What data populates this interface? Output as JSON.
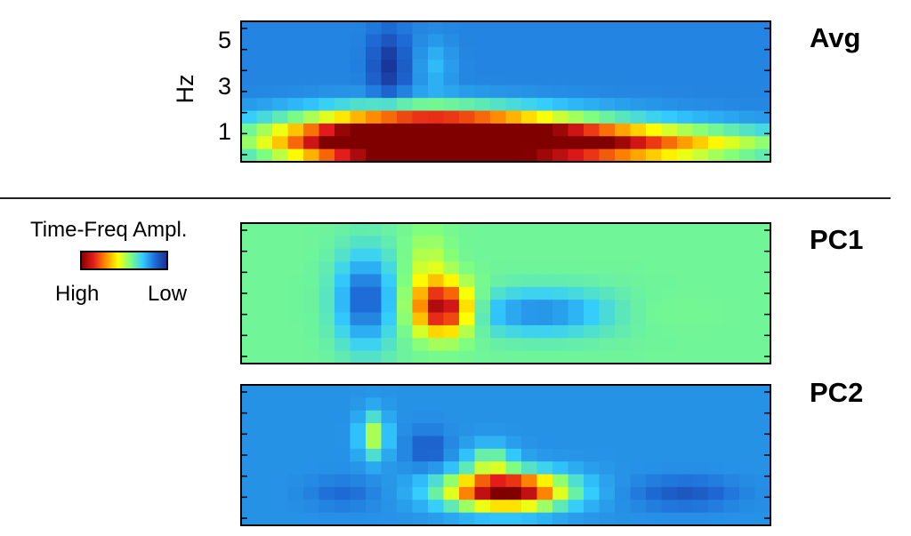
{
  "chart_data": [
    {
      "type": "heatmap",
      "label": "Avg",
      "ylabel": "Hz",
      "yticks": [
        "1",
        "3",
        "5"
      ],
      "rows": 11,
      "cols": 34,
      "blobs": [
        {
          "c": 13,
          "r": 8.8,
          "sc": 7.5,
          "sr": 1.3,
          "a": 1.0
        },
        {
          "c": 23,
          "r": 9.2,
          "sc": 9,
          "sr": 1.0,
          "a": 0.45
        },
        {
          "c": 8,
          "r": 9.3,
          "sc": 4,
          "sr": 1.0,
          "a": 0.28
        },
        {
          "c": 11,
          "r": 7.2,
          "sc": 5,
          "sr": 1.0,
          "a": 0.25
        },
        {
          "c": 9,
          "r": 3,
          "sc": 0.8,
          "sr": 1.8,
          "a": -0.16
        },
        {
          "c": 12,
          "r": 3,
          "sc": 0.8,
          "sr": 1.4,
          "a": 0.08
        }
      ],
      "base": 0.18
    },
    {
      "type": "heatmap",
      "label": "PC1",
      "rows": 11,
      "cols": 34,
      "blobs": [
        {
          "c": 12.5,
          "r": 6.2,
          "sc": 1.3,
          "sr": 1.4,
          "a": 0.55
        },
        {
          "c": 11.5,
          "r": 3.5,
          "sc": 1.0,
          "sr": 2.2,
          "a": 0.12
        },
        {
          "c": 7.5,
          "r": 5.5,
          "sc": 1.3,
          "sr": 2.5,
          "a": -0.28
        },
        {
          "c": 19,
          "r": 6.5,
          "sc": 3.5,
          "sr": 1.2,
          "a": -0.22
        },
        {
          "c": 24,
          "r": 6.5,
          "sc": 3,
          "sr": 1.0,
          "a": 0.04
        }
      ],
      "base": 0.4
    },
    {
      "type": "heatmap",
      "label": "PC2",
      "rows": 11,
      "cols": 34,
      "blobs": [
        {
          "c": 16.5,
          "r": 7.8,
          "sc": 2.6,
          "sr": 1.0,
          "a": 0.85
        },
        {
          "c": 15.5,
          "r": 5.5,
          "sc": 1.0,
          "sr": 0.9,
          "a": 0.22
        },
        {
          "c": 8,
          "r": 3.5,
          "sc": 0.6,
          "sr": 1.2,
          "a": 0.3
        },
        {
          "c": 11.5,
          "r": 4.5,
          "sc": 0.8,
          "sr": 1.0,
          "a": -0.1
        },
        {
          "c": 28,
          "r": 8.0,
          "sc": 2.2,
          "sr": 0.8,
          "a": -0.1
        },
        {
          "c": 6,
          "r": 8.0,
          "sc": 1.5,
          "sr": 0.8,
          "a": -0.06
        }
      ],
      "base": 0.2
    }
  ],
  "legend": {
    "title": "Time-Freq Ampl.",
    "high_label": "High",
    "low_label": "Low"
  },
  "colormap": [
    "#800000",
    "#e31a1c",
    "#ff8c00",
    "#ffff00",
    "#7fff7f",
    "#33ccff",
    "#1e6bd6",
    "#1a2d8f"
  ]
}
